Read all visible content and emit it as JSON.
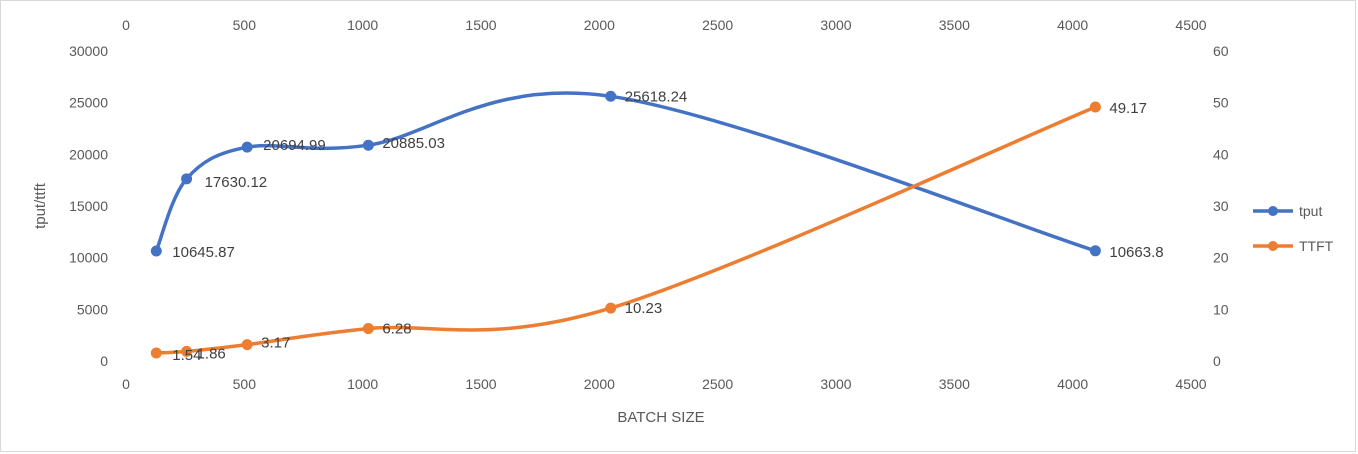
{
  "chart_data": {
    "type": "line",
    "smooth": true,
    "xlabel": "BATCH SIZE",
    "ylabel": "tput/ttft",
    "y2label": "",
    "x": [
      128,
      256,
      512,
      1024,
      2048,
      4096
    ],
    "x_axis_bottom": {
      "range": [
        0,
        4500
      ],
      "ticks": [
        0,
        500,
        1000,
        1500,
        2000,
        2500,
        3000,
        3500,
        4000,
        4500
      ],
      "tick_labels": [
        "0",
        "500",
        "1000",
        "1500",
        "2000",
        "2500",
        "3000",
        "3500",
        "4000",
        "4500"
      ]
    },
    "x_axis_top": {
      "range": [
        0,
        4500
      ],
      "ticks": [
        0,
        500,
        1000,
        1500,
        2000,
        2500,
        3000,
        3500,
        4000,
        4500
      ],
      "tick_labels": [
        "0",
        "500",
        "1000",
        "1500",
        "2000",
        "2500",
        "3000",
        "3500",
        "4000",
        "4500"
      ]
    },
    "y_axis_left": {
      "range": [
        0,
        30000
      ],
      "ticks": [
        0,
        5000,
        10000,
        15000,
        20000,
        25000,
        30000
      ],
      "tick_labels": [
        "0",
        "5000",
        "10000",
        "15000",
        "20000",
        "25000",
        "30000"
      ]
    },
    "y_axis_right": {
      "range": [
        0,
        60
      ],
      "ticks": [
        0,
        10,
        20,
        30,
        40,
        50,
        60
      ],
      "tick_labels": [
        "0",
        "10",
        "20",
        "30",
        "40",
        "50",
        "60"
      ]
    },
    "series": [
      {
        "name": "tput",
        "axis": "left",
        "color": "#4472C4",
        "values": [
          10645.87,
          17630.12,
          20694.99,
          20885.03,
          25618.24,
          10663.8
        ],
        "labels": [
          "10645.87",
          "17630.12",
          "20694.99",
          "20885.03",
          "25618.24",
          "10663.8"
        ]
      },
      {
        "name": "TTFT",
        "axis": "right",
        "color": "#ED7D31",
        "values": [
          1.54,
          1.86,
          3.17,
          6.28,
          10.23,
          49.17
        ],
        "labels": [
          "1.54",
          "1.86",
          "3.17",
          "6.28",
          "10.23",
          "49.17"
        ]
      }
    ],
    "grid": false,
    "legend_position": "right"
  }
}
